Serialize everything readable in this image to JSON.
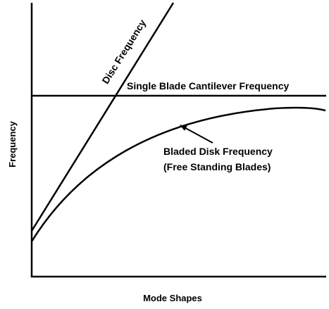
{
  "axes": {
    "y_label": "Frequency",
    "x_label": "Mode Shapes"
  },
  "curves": [
    {
      "label": "Disc Frequency"
    },
    {
      "label": "Single Blade Cantilever Frequency"
    },
    {
      "label": "Bladed Disk Frequency",
      "sublabel": "(Free Standing Blades)"
    }
  ]
}
